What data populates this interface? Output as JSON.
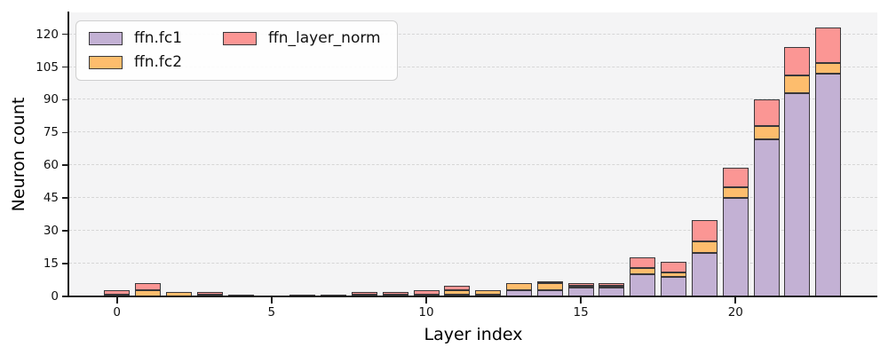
{
  "chart_data": {
    "type": "bar",
    "stacked": true,
    "title": "",
    "xlabel": "Layer index",
    "ylabel": "Neuron count",
    "x": [
      0,
      1,
      2,
      3,
      4,
      5,
      6,
      7,
      8,
      9,
      10,
      11,
      12,
      13,
      14,
      15,
      16,
      17,
      18,
      19,
      20,
      21,
      22,
      23
    ],
    "xticks": [
      0,
      5,
      10,
      15,
      20
    ],
    "yticks": [
      0,
      15,
      30,
      45,
      60,
      75,
      90,
      105,
      120
    ],
    "ylim": [
      0,
      130
    ],
    "grid": "horizontal-dashed",
    "legend_position": "upper-left",
    "plot_background": "#f4f4f5",
    "grid_color": "#d6d6d6",
    "bar_edge_color": "#39373a",
    "series": [
      {
        "name": "ffn.fc1",
        "color": "#c3b1d4",
        "values": [
          0,
          0,
          0,
          0,
          1,
          0,
          0,
          0,
          0,
          0,
          0,
          1,
          1,
          3,
          3,
          4,
          4,
          10,
          9,
          20,
          45,
          72,
          93,
          102
        ]
      },
      {
        "name": "ffn.fc2",
        "color": "#fdbd6d",
        "values": [
          1,
          3,
          2,
          1,
          0,
          0,
          1,
          1,
          1,
          1,
          1,
          2,
          2,
          3,
          3,
          1,
          1,
          3,
          2,
          5,
          5,
          6,
          8,
          5
        ]
      },
      {
        "name": "ffn_layer_norm",
        "color": "#fb9694",
        "values": [
          2,
          3,
          0,
          1,
          0,
          0,
          0,
          0,
          1,
          1,
          2,
          2,
          0,
          0,
          1,
          1,
          1,
          5,
          5,
          10,
          9,
          12,
          13,
          16
        ]
      }
    ]
  }
}
